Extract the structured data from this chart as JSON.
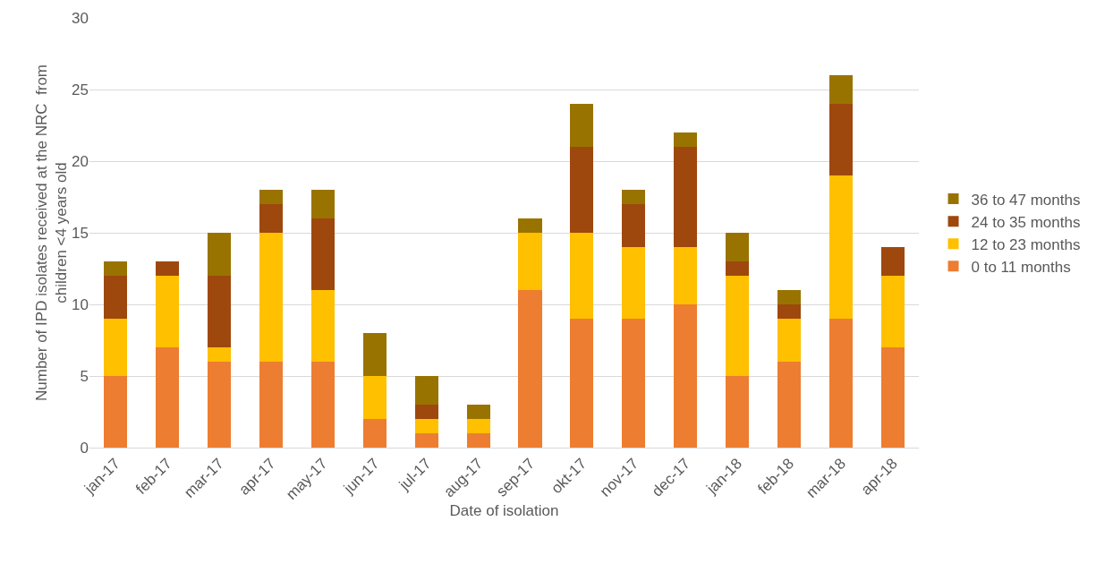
{
  "chart_data": {
    "type": "bar",
    "stacked": true,
    "xlabel": "Date of isolation",
    "ylabel": "Number of IPD isolates received at the NRC  from children <4 years old",
    "categories": [
      "jan-17",
      "feb-17",
      "mar-17",
      "apr-17",
      "may-17",
      "jun-17",
      "jul-17",
      "aug-17",
      "sep-17",
      "okt-17",
      "nov-17",
      "dec-17",
      "jan-18",
      "feb-18",
      "mar-18",
      "apr-18"
    ],
    "series": [
      {
        "name": "0 to 11 months",
        "color": "#ed7d31",
        "values": [
          5,
          7,
          6,
          6,
          6,
          2,
          1,
          1,
          11,
          9,
          9,
          10,
          5,
          6,
          9,
          7
        ]
      },
      {
        "name": "12 to 23 months",
        "color": "#ffc000",
        "values": [
          4,
          5,
          1,
          9,
          5,
          3,
          1,
          1,
          4,
          6,
          5,
          4,
          7,
          3,
          10,
          5
        ]
      },
      {
        "name": "24 to 35 months",
        "color": "#9e480e",
        "values": [
          3,
          1,
          5,
          2,
          5,
          0,
          1,
          0,
          0,
          6,
          3,
          7,
          1,
          1,
          5,
          2
        ]
      },
      {
        "name": "36 to 47 months",
        "color": "#997300",
        "values": [
          1,
          0,
          3,
          1,
          2,
          3,
          2,
          1,
          1,
          3,
          1,
          1,
          2,
          1,
          2,
          0
        ]
      }
    ],
    "ylim": [
      0,
      30
    ],
    "yticks": [
      0,
      5,
      10,
      15,
      20,
      25,
      30
    ],
    "grid": "y",
    "legend": "right"
  }
}
